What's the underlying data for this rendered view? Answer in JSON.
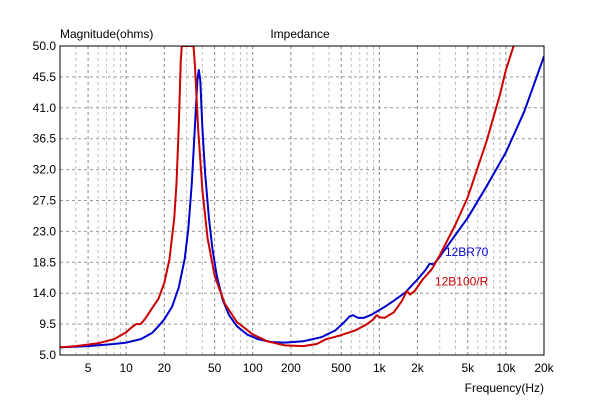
{
  "chart_data": {
    "type": "line",
    "title": "Impedance",
    "ylabel": "Magnitude(ohms)",
    "xlabel": "Frequency(Hz)",
    "xscale": "log",
    "xlim": [
      3,
      20000
    ],
    "ylim": [
      5.0,
      50.0
    ],
    "grid": true,
    "y_ticks": [
      5.0,
      9.5,
      14.0,
      18.5,
      23.0,
      27.5,
      32.0,
      36.5,
      41.0,
      45.5,
      50.0
    ],
    "y_tick_labels": [
      "5.0",
      "9.5",
      "14.0",
      "18.5",
      "23.0",
      "27.5",
      "32.0",
      "36.5",
      "41.0",
      "45.5",
      "50.0"
    ],
    "x_ticks": [
      5,
      10,
      20,
      50,
      100,
      200,
      500,
      1000,
      2000,
      5000,
      10000,
      20000
    ],
    "x_tick_labels": [
      "5",
      "10",
      "20",
      "50",
      "100",
      "200",
      "500",
      "1k",
      "2k",
      "5k",
      "10k",
      "20k"
    ],
    "series": [
      {
        "name": "12BR70",
        "color": "#0000cc",
        "points": [
          [
            3,
            6.1
          ],
          [
            5,
            6.3
          ],
          [
            8,
            6.6
          ],
          [
            10,
            6.8
          ],
          [
            13,
            7.3
          ],
          [
            16,
            8.2
          ],
          [
            18,
            9.2
          ],
          [
            20,
            10.2
          ],
          [
            23,
            12.0
          ],
          [
            26,
            14.8
          ],
          [
            29,
            19.0
          ],
          [
            31,
            23.5
          ],
          [
            33,
            30.0
          ],
          [
            35,
            38.5
          ],
          [
            36.5,
            45.0
          ],
          [
            37.5,
            46.5
          ],
          [
            38.5,
            45.0
          ],
          [
            40,
            38.0
          ],
          [
            42,
            31.5
          ],
          [
            45,
            25.0
          ],
          [
            48,
            20.5
          ],
          [
            52,
            16.5
          ],
          [
            58,
            13.0
          ],
          [
            65,
            10.8
          ],
          [
            75,
            9.2
          ],
          [
            90,
            8.0
          ],
          [
            110,
            7.3
          ],
          [
            140,
            6.9
          ],
          [
            180,
            6.8
          ],
          [
            250,
            7.0
          ],
          [
            350,
            7.6
          ],
          [
            450,
            8.6
          ],
          [
            530,
            9.8
          ],
          [
            580,
            10.6
          ],
          [
            620,
            10.8
          ],
          [
            680,
            10.4
          ],
          [
            750,
            10.4
          ],
          [
            850,
            10.8
          ],
          [
            950,
            11.3
          ],
          [
            1100,
            12.0
          ],
          [
            1300,
            12.9
          ],
          [
            1600,
            14.1
          ],
          [
            2000,
            16.0
          ],
          [
            2300,
            17.3
          ],
          [
            2500,
            18.3
          ],
          [
            2700,
            18.2
          ],
          [
            3000,
            19.3
          ],
          [
            4000,
            22.5
          ],
          [
            5000,
            25.0
          ],
          [
            7000,
            29.5
          ],
          [
            10000,
            34.5
          ],
          [
            14000,
            40.5
          ],
          [
            20000,
            48.5
          ]
        ]
      },
      {
        "name": "12B100/R",
        "color": "#cc0000",
        "points": [
          [
            3,
            6.1
          ],
          [
            4,
            6.3
          ],
          [
            6,
            6.7
          ],
          [
            8,
            7.3
          ],
          [
            10,
            8.3
          ],
          [
            11,
            9.0
          ],
          [
            12,
            9.5
          ],
          [
            13,
            9.5
          ],
          [
            14,
            10.2
          ],
          [
            15,
            11.0
          ],
          [
            16,
            11.8
          ],
          [
            18,
            13.2
          ],
          [
            20,
            15.5
          ],
          [
            22,
            19.0
          ],
          [
            24,
            25.0
          ],
          [
            25,
            30.0
          ],
          [
            26,
            38.0
          ],
          [
            27,
            48.0
          ],
          [
            27.5,
            50.0
          ],
          [
            34,
            50.0
          ],
          [
            35,
            47.0
          ],
          [
            37,
            38.0
          ],
          [
            40,
            29.0
          ],
          [
            44,
            22.0
          ],
          [
            50,
            16.5
          ],
          [
            60,
            12.5
          ],
          [
            75,
            9.8
          ],
          [
            100,
            8.0
          ],
          [
            130,
            7.0
          ],
          [
            180,
            6.4
          ],
          [
            250,
            6.3
          ],
          [
            320,
            6.6
          ],
          [
            380,
            7.3
          ],
          [
            420,
            7.5
          ],
          [
            500,
            7.9
          ],
          [
            650,
            8.6
          ],
          [
            800,
            9.5
          ],
          [
            900,
            10.2
          ],
          [
            950,
            10.8
          ],
          [
            1000,
            10.5
          ],
          [
            1100,
            10.4
          ],
          [
            1300,
            11.2
          ],
          [
            1500,
            12.8
          ],
          [
            1650,
            14.3
          ],
          [
            1750,
            13.8
          ],
          [
            1900,
            14.3
          ],
          [
            2200,
            16.0
          ],
          [
            2600,
            17.5
          ],
          [
            3000,
            19.5
          ],
          [
            4000,
            24.0
          ],
          [
            5000,
            28.0
          ],
          [
            7000,
            36.0
          ],
          [
            9000,
            43.0
          ],
          [
            10000,
            46.5
          ],
          [
            11500,
            50.0
          ]
        ]
      }
    ]
  }
}
